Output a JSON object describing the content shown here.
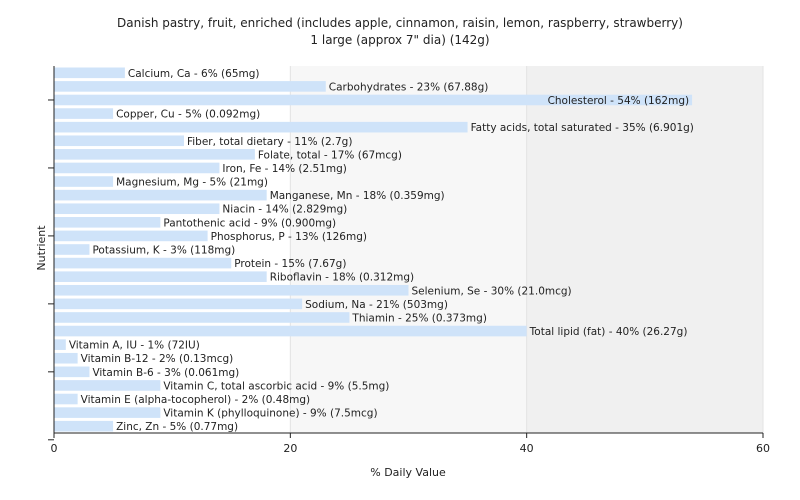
{
  "chart_data": {
    "type": "bar",
    "orientation": "horizontal",
    "title": "Danish pastry, fruit, enriched (includes apple, cinnamon, raisin, lemon, raspberry, strawberry)",
    "subtitle": "1 large (approx 7\" dia) (142g)",
    "xlabel": "% Daily Value",
    "ylabel": "Nutrient",
    "xlim": [
      0,
      60
    ],
    "xticks": [
      0,
      20,
      40,
      60
    ],
    "grid": true,
    "colors": {
      "bar": "#cfe3f9",
      "background": "#f2f2f2"
    },
    "categories": [
      "Calcium, Ca",
      "Carbohydrates",
      "Cholesterol",
      "Copper, Cu",
      "Fatty acids, total saturated",
      "Fiber, total dietary",
      "Folate, total",
      "Iron, Fe",
      "Magnesium, Mg",
      "Manganese, Mn",
      "Niacin",
      "Pantothenic acid",
      "Phosphorus, P",
      "Potassium, K",
      "Protein",
      "Riboflavin",
      "Selenium, Se",
      "Sodium, Na",
      "Thiamin",
      "Total lipid (fat)",
      "Vitamin A, IU",
      "Vitamin B-12",
      "Vitamin B-6",
      "Vitamin C, total ascorbic acid",
      "Vitamin E (alpha-tocopherol)",
      "Vitamin K (phylloquinone)",
      "Zinc, Zn"
    ],
    "values": [
      6,
      23,
      54,
      5,
      35,
      11,
      17,
      14,
      5,
      18,
      14,
      9,
      13,
      3,
      15,
      18,
      30,
      21,
      25,
      40,
      1,
      2,
      3,
      9,
      2,
      9,
      5
    ],
    "labels": [
      "Calcium, Ca - 6% (65mg)",
      "Carbohydrates - 23% (67.88g)",
      "Cholesterol - 54% (162mg)",
      "Copper, Cu - 5% (0.092mg)",
      "Fatty acids, total saturated - 35% (6.901g)",
      "Fiber, total dietary - 11% (2.7g)",
      "Folate, total - 17% (67mcg)",
      "Iron, Fe - 14% (2.51mg)",
      "Magnesium, Mg - 5% (21mg)",
      "Manganese, Mn - 18% (0.359mg)",
      "Niacin - 14% (2.829mg)",
      "Pantothenic acid - 9% (0.900mg)",
      "Phosphorus, P - 13% (126mg)",
      "Potassium, K - 3% (118mg)",
      "Protein - 15% (7.67g)",
      "Riboflavin - 18% (0.312mg)",
      "Selenium, Se - 30% (21.0mcg)",
      "Sodium, Na - 21% (503mg)",
      "Thiamin - 25% (0.373mg)",
      "Total lipid (fat) - 40% (26.27g)",
      "Vitamin A, IU - 1% (72IU)",
      "Vitamin B-12 - 2% (0.13mcg)",
      "Vitamin B-6 - 3% (0.061mg)",
      "Vitamin C, total ascorbic acid - 9% (5.5mg)",
      "Vitamin E (alpha-tocopherol) - 2% (0.48mg)",
      "Vitamin K (phylloquinone) - 9% (7.5mcg)",
      "Zinc, Zn - 5% (0.77mg)"
    ]
  }
}
